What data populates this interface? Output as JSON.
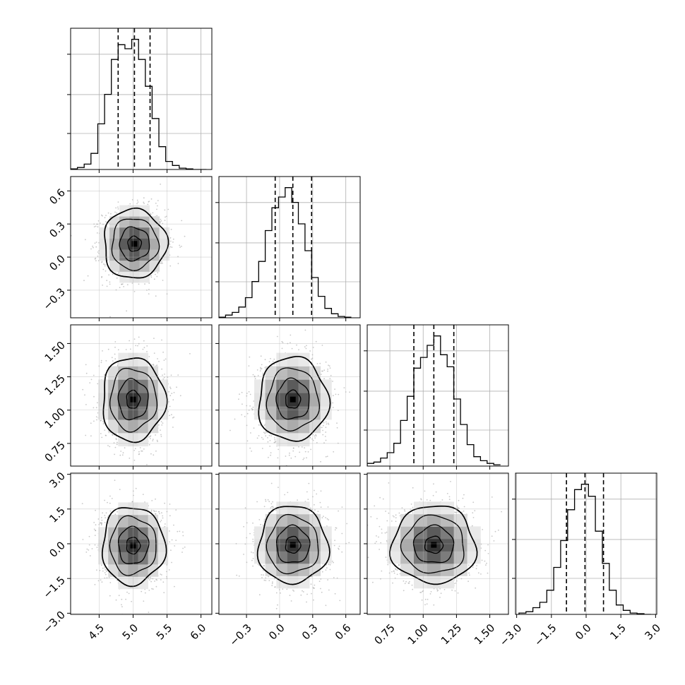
{
  "chart_data": {
    "type": "corner",
    "parameters": [
      {
        "ticks": [
          "4.5",
          "5.0",
          "5.5",
          "6.0"
        ],
        "tick_values": [
          4.5,
          5.0,
          5.5,
          6.0
        ],
        "range": [
          4.08,
          6.16
        ],
        "quantiles": [
          4.78,
          5.02,
          5.25
        ],
        "histogram": {
          "bins": [
            4.08,
            4.18,
            4.28,
            4.38,
            4.48,
            4.58,
            4.68,
            4.78,
            4.88,
            4.98,
            5.08,
            5.18,
            5.28,
            5.38,
            5.48,
            5.58,
            5.68,
            5.78,
            5.88,
            5.98,
            6.08
          ],
          "counts": [
            0.005,
            0.015,
            0.04,
            0.12,
            0.34,
            0.56,
            0.82,
            0.93,
            0.9,
            0.97,
            0.82,
            0.62,
            0.38,
            0.17,
            0.06,
            0.03,
            0.01,
            0.005,
            0.0,
            0.0
          ]
        }
      },
      {
        "ticks": [
          "−0.3",
          "0.0",
          "0.3",
          "0.6"
        ],
        "tick_values": [
          -0.3,
          0.0,
          0.3,
          0.6
        ],
        "range": [
          -0.55,
          0.73
        ],
        "quantiles": [
          -0.04,
          0.12,
          0.29
        ],
        "histogram": {
          "bins": [
            -0.55,
            -0.49,
            -0.43,
            -0.37,
            -0.31,
            -0.25,
            -0.19,
            -0.13,
            -0.07,
            -0.01,
            0.05,
            0.11,
            0.17,
            0.23,
            0.29,
            0.35,
            0.41,
            0.47,
            0.53,
            0.59,
            0.65
          ],
          "counts": [
            0.005,
            0.02,
            0.04,
            0.08,
            0.15,
            0.27,
            0.42,
            0.65,
            0.82,
            0.9,
            0.97,
            0.86,
            0.7,
            0.5,
            0.3,
            0.16,
            0.07,
            0.03,
            0.01,
            0.005
          ]
        }
      },
      {
        "ticks": [
          "0.75",
          "1.00",
          "1.25",
          "1.50"
        ],
        "tick_values": [
          0.75,
          1.0,
          1.25,
          1.5
        ],
        "range": [
          0.58,
          1.64
        ],
        "quantiles": [
          0.93,
          1.08,
          1.23
        ],
        "histogram": {
          "bins": [
            0.58,
            0.63,
            0.68,
            0.73,
            0.78,
            0.83,
            0.88,
            0.93,
            0.98,
            1.03,
            1.08,
            1.13,
            1.18,
            1.23,
            1.28,
            1.33,
            1.38,
            1.43,
            1.48,
            1.53,
            1.58
          ],
          "counts": [
            0.02,
            0.03,
            0.06,
            0.1,
            0.17,
            0.34,
            0.52,
            0.73,
            0.81,
            0.9,
            0.97,
            0.83,
            0.74,
            0.5,
            0.31,
            0.16,
            0.07,
            0.04,
            0.02,
            0.01
          ]
        }
      },
      {
        "ticks": [
          "−3.0",
          "−1.5",
          "0.0",
          "1.5",
          "3.0"
        ],
        "tick_values": [
          -3.0,
          -1.5,
          0.0,
          1.5,
          3.0
        ],
        "range": [
          -3.05,
          3.05
        ],
        "quantiles": [
          -0.85,
          -0.05,
          0.75
        ],
        "histogram": {
          "bins": [
            -2.9,
            -2.6,
            -2.3,
            -2.0,
            -1.7,
            -1.4,
            -1.1,
            -0.8,
            -0.5,
            -0.2,
            0.1,
            0.4,
            0.7,
            1.0,
            1.3,
            1.6,
            1.9,
            2.2,
            2.5,
            2.8
          ],
          "counts": [
            0.01,
            0.02,
            0.05,
            0.09,
            0.18,
            0.35,
            0.55,
            0.78,
            0.93,
            0.97,
            0.88,
            0.62,
            0.38,
            0.18,
            0.07,
            0.03,
            0.01,
            0.005,
            0.0
          ]
        }
      }
    ],
    "pairs": [
      {
        "row": 1,
        "col": 0,
        "center": [
          5.02,
          0.12
        ],
        "spread": [
          0.22,
          0.15
        ],
        "rho": 0.0
      },
      {
        "row": 2,
        "col": 0,
        "center": [
          5.0,
          1.08
        ],
        "spread": [
          0.22,
          0.15
        ],
        "rho": 0.0
      },
      {
        "row": 2,
        "col": 1,
        "center": [
          0.12,
          1.08
        ],
        "spread": [
          0.15,
          0.15
        ],
        "rho": 0.0
      },
      {
        "row": 3,
        "col": 0,
        "center": [
          5.0,
          -0.08
        ],
        "spread": [
          0.22,
          0.8
        ],
        "rho": 0.0
      },
      {
        "row": 3,
        "col": 1,
        "center": [
          0.12,
          -0.05
        ],
        "spread": [
          0.15,
          0.8
        ],
        "rho": 0.0
      },
      {
        "row": 3,
        "col": 2,
        "center": [
          1.08,
          -0.05
        ],
        "spread": [
          0.15,
          0.8
        ],
        "rho": 0.0
      }
    ],
    "grid": true,
    "colors": {
      "line": "#000000",
      "grid": "#b0b0b0",
      "scatter": "#9a9a9a",
      "density_dark": "#000000",
      "density_light": "#ffffff"
    }
  }
}
